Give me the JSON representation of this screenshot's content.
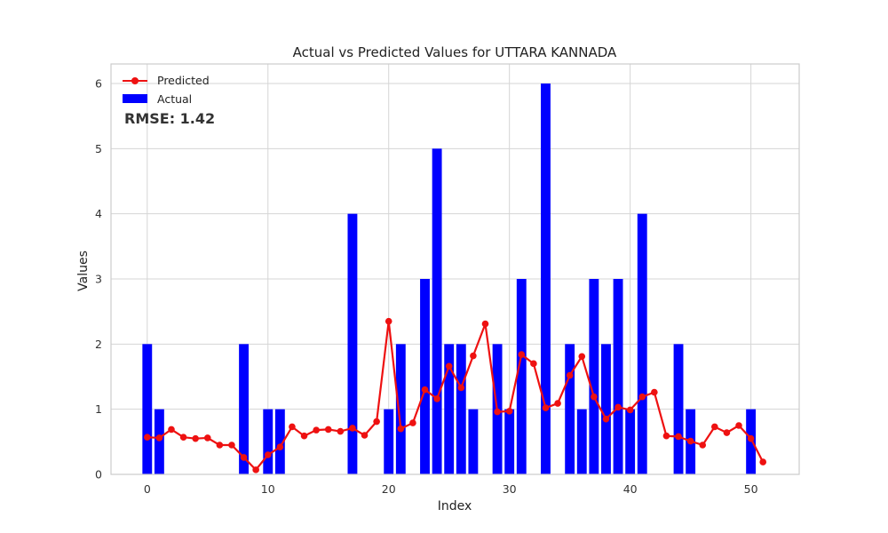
{
  "chart_data": {
    "type": "bar",
    "title": "Actual vs Predicted Values for UTTARA KANNADA",
    "xlabel": "Index",
    "ylabel": "Values",
    "xlim": [
      -3,
      54
    ],
    "ylim": [
      0,
      6.3
    ],
    "xticks": [
      0,
      10,
      20,
      30,
      40,
      50
    ],
    "yticks": [
      0,
      1,
      2,
      3,
      4,
      5,
      6
    ],
    "grid": true,
    "legend_position": "upper-left",
    "annotation": "RMSE: 1.42",
    "annotation_color": "#ee1111",
    "series": [
      {
        "name": "Predicted",
        "type": "line",
        "color": "#ee1111",
        "marker": "circle",
        "x": [
          0,
          1,
          2,
          3,
          4,
          5,
          6,
          7,
          8,
          9,
          10,
          11,
          12,
          13,
          14,
          15,
          16,
          17,
          18,
          19,
          20,
          21,
          22,
          23,
          24,
          25,
          26,
          27,
          28,
          29,
          30,
          31,
          32,
          33,
          34,
          35,
          36,
          37,
          38,
          39,
          40,
          41,
          42,
          43,
          44,
          45,
          46,
          47,
          48,
          49,
          50,
          51
        ],
        "values": [
          0.57,
          0.56,
          0.69,
          0.57,
          0.55,
          0.56,
          0.45,
          0.45,
          0.26,
          0.07,
          0.3,
          0.42,
          0.73,
          0.59,
          0.68,
          0.69,
          0.66,
          0.71,
          0.6,
          0.81,
          2.35,
          0.7,
          0.79,
          1.3,
          1.16,
          1.66,
          1.33,
          1.82,
          2.31,
          0.96,
          0.97,
          1.84,
          1.7,
          1.02,
          1.09,
          1.52,
          1.81,
          1.19,
          0.85,
          1.03,
          0.99,
          1.19,
          1.26,
          0.59,
          0.58,
          0.51,
          0.45,
          0.73,
          0.64,
          0.75,
          0.55,
          0.19
        ]
      },
      {
        "name": "Actual",
        "type": "bar",
        "color": "#0000ff",
        "x": [
          0,
          1,
          2,
          3,
          4,
          5,
          6,
          7,
          8,
          9,
          10,
          11,
          12,
          13,
          14,
          15,
          16,
          17,
          18,
          19,
          20,
          21,
          22,
          23,
          24,
          25,
          26,
          27,
          28,
          29,
          30,
          31,
          32,
          33,
          34,
          35,
          36,
          37,
          38,
          39,
          40,
          41,
          42,
          43,
          44,
          45,
          46,
          47,
          48,
          49,
          50,
          51
        ],
        "values": [
          2,
          1,
          0,
          0,
          0,
          0,
          0,
          0,
          2,
          0,
          1,
          1,
          0,
          0,
          0,
          0,
          0,
          4,
          0,
          0,
          1,
          2,
          0,
          3,
          5,
          2,
          2,
          1,
          0,
          2,
          1,
          3,
          0,
          6,
          0,
          2,
          1,
          3,
          2,
          3,
          1,
          4,
          0,
          0,
          2,
          1,
          0,
          0,
          0,
          0,
          1,
          0
        ]
      }
    ]
  }
}
